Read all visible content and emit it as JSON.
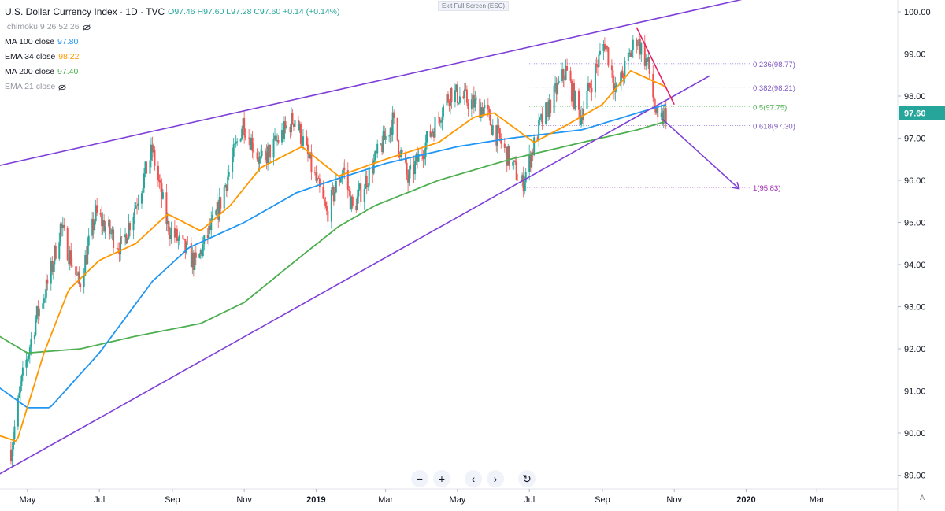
{
  "header": {
    "title": "U.S. Dollar Currency Index · 1D · TVC",
    "ohlc": "O97.46  H97.60  L97.28  C97.60  +0.14 (+0.14%)"
  },
  "legend_rows": [
    {
      "label": "Ichimoku 9 26 52 26",
      "value": "",
      "hidden": true
    },
    {
      "label": "MA  100 close",
      "value": "97.80",
      "color": "#2196f3",
      "hidden": false
    },
    {
      "label": "EMA 34 close",
      "value": "98.22",
      "color": "#ff9800",
      "hidden": false
    },
    {
      "label": "MA  200 close",
      "value": "97.40",
      "color": "#4caf50",
      "hidden": false
    },
    {
      "label": "EMA 21 close",
      "value": "",
      "hidden": true
    }
  ],
  "exit_fullscreen": "Exit Full Screen (ESC)",
  "toolbar": {
    "zoom_out": "−",
    "zoom_in": "+",
    "scroll_left": "‹",
    "scroll_right": "›",
    "reset": "↻"
  },
  "auto_label": "A",
  "chart_data": {
    "type": "candlestick",
    "title": "U.S. Dollar Currency Index",
    "interval": "1D",
    "source": "TVC",
    "colors": {
      "up": "#26a69a",
      "down": "#ef5350",
      "ma100": "#2196f3",
      "ema34": "#ff9800",
      "ma200": "#4caf50",
      "trendline": "#7e3fd8",
      "resistance": "#e91e63",
      "fib": "#9c8ad8"
    },
    "ylim": [
      88.7,
      100.25
    ],
    "y_ticks": [
      "100.00",
      "99.00",
      "98.00",
      "97.00",
      "96.00",
      "95.00",
      "94.00",
      "93.00",
      "92.00",
      "91.00",
      "90.00",
      "89.00"
    ],
    "x_ticks": [
      "May",
      "Jul",
      "Sep",
      "Nov",
      "2019",
      "Mar",
      "May",
      "Jul",
      "Sep",
      "Nov",
      "2020",
      "Mar"
    ],
    "last_price": "97.60",
    "price_path": [
      {
        "date": "2018-04-17",
        "v": 89.6
      },
      {
        "date": "2018-04-26",
        "v": 91.2
      },
      {
        "date": "2018-05-08",
        "v": 92.7
      },
      {
        "date": "2018-05-20",
        "v": 93.7
      },
      {
        "date": "2018-05-29",
        "v": 94.9
      },
      {
        "date": "2018-06-14",
        "v": 93.5
      },
      {
        "date": "2018-06-28",
        "v": 95.2
      },
      {
        "date": "2018-07-20",
        "v": 94.4
      },
      {
        "date": "2018-08-15",
        "v": 96.7
      },
      {
        "date": "2018-08-28",
        "v": 94.9
      },
      {
        "date": "2018-09-21",
        "v": 94.0
      },
      {
        "date": "2018-10-10",
        "v": 95.3
      },
      {
        "date": "2018-10-31",
        "v": 97.4
      },
      {
        "date": "2018-11-15",
        "v": 96.4
      },
      {
        "date": "2018-12-14",
        "v": 97.5
      },
      {
        "date": "2019-01-10",
        "v": 95.2
      },
      {
        "date": "2019-01-24",
        "v": 96.3
      },
      {
        "date": "2019-02-01",
        "v": 95.3
      },
      {
        "date": "2019-03-07",
        "v": 97.4
      },
      {
        "date": "2019-03-20",
        "v": 96.0
      },
      {
        "date": "2019-04-25",
        "v": 98.1
      },
      {
        "date": "2019-05-23",
        "v": 97.7
      },
      {
        "date": "2019-06-25",
        "v": 95.9
      },
      {
        "date": "2019-07-10",
        "v": 97.3
      },
      {
        "date": "2019-08-01",
        "v": 98.6
      },
      {
        "date": "2019-08-13",
        "v": 97.5
      },
      {
        "date": "2019-09-03",
        "v": 99.3
      },
      {
        "date": "2019-09-13",
        "v": 98.1
      },
      {
        "date": "2019-09-30",
        "v": 99.4
      },
      {
        "date": "2019-10-10",
        "v": 98.7
      },
      {
        "date": "2019-10-18",
        "v": 97.3
      },
      {
        "date": "2019-10-25",
        "v": 97.6
      }
    ],
    "ma100_close": [
      {
        "date": "2018-04-01",
        "v": 91.2
      },
      {
        "date": "2018-05-01",
        "v": 90.6
      },
      {
        "date": "2018-05-20",
        "v": 90.6
      },
      {
        "date": "2018-07-01",
        "v": 91.9
      },
      {
        "date": "2018-08-15",
        "v": 93.6
      },
      {
        "date": "2018-09-15",
        "v": 94.4
      },
      {
        "date": "2018-11-01",
        "v": 95.0
      },
      {
        "date": "2018-12-15",
        "v": 95.7
      },
      {
        "date": "2019-01-15",
        "v": 96.0
      },
      {
        "date": "2019-03-01",
        "v": 96.4
      },
      {
        "date": "2019-05-01",
        "v": 96.8
      },
      {
        "date": "2019-06-15",
        "v": 97.0
      },
      {
        "date": "2019-08-15",
        "v": 97.2
      },
      {
        "date": "2019-10-01",
        "v": 97.6
      },
      {
        "date": "2019-10-25",
        "v": 97.8
      }
    ],
    "ema34_close": [
      {
        "date": "2018-04-01",
        "v": 90.0
      },
      {
        "date": "2018-04-22",
        "v": 89.8
      },
      {
        "date": "2018-05-15",
        "v": 91.9
      },
      {
        "date": "2018-06-05",
        "v": 93.4
      },
      {
        "date": "2018-07-01",
        "v": 94.1
      },
      {
        "date": "2018-08-01",
        "v": 94.5
      },
      {
        "date": "2018-08-28",
        "v": 95.2
      },
      {
        "date": "2018-09-25",
        "v": 94.8
      },
      {
        "date": "2018-10-20",
        "v": 95.4
      },
      {
        "date": "2018-11-15",
        "v": 96.3
      },
      {
        "date": "2018-12-20",
        "v": 96.8
      },
      {
        "date": "2019-01-20",
        "v": 96.1
      },
      {
        "date": "2019-03-01",
        "v": 96.5
      },
      {
        "date": "2019-04-15",
        "v": 96.9
      },
      {
        "date": "2019-05-15",
        "v": 97.5
      },
      {
        "date": "2019-06-01",
        "v": 97.6
      },
      {
        "date": "2019-07-05",
        "v": 96.9
      },
      {
        "date": "2019-08-01",
        "v": 97.3
      },
      {
        "date": "2019-09-01",
        "v": 97.8
      },
      {
        "date": "2019-09-25",
        "v": 98.6
      },
      {
        "date": "2019-10-25",
        "v": 98.22
      }
    ],
    "ma200_close": [
      {
        "date": "2018-04-01",
        "v": 92.4
      },
      {
        "date": "2018-05-01",
        "v": 91.9
      },
      {
        "date": "2018-06-15",
        "v": 92.0
      },
      {
        "date": "2018-08-01",
        "v": 92.3
      },
      {
        "date": "2018-09-25",
        "v": 92.6
      },
      {
        "date": "2018-11-01",
        "v": 93.1
      },
      {
        "date": "2018-12-15",
        "v": 94.1
      },
      {
        "date": "2019-01-20",
        "v": 94.9
      },
      {
        "date": "2019-02-20",
        "v": 95.4
      },
      {
        "date": "2019-04-15",
        "v": 96.0
      },
      {
        "date": "2019-06-15",
        "v": 96.5
      },
      {
        "date": "2019-08-15",
        "v": 96.9
      },
      {
        "date": "2019-10-01",
        "v": 97.2
      },
      {
        "date": "2019-10-25",
        "v": 97.4
      }
    ],
    "trendlines": [
      {
        "name": "upper-channel",
        "color": "#7e3fd8",
        "from": {
          "date": "2018-03-27",
          "v": 96.28
        },
        "to": {
          "date": "2019-12-28",
          "v": 100.29
        }
      },
      {
        "name": "lower-channel",
        "color": "#7e3fd8",
        "from": {
          "date": "2018-03-27",
          "v": 88.85
        },
        "to": {
          "date": "2019-12-01",
          "v": 98.48
        }
      },
      {
        "name": "resistance",
        "color": "#e91e63",
        "from": {
          "date": "2019-09-30",
          "v": 99.63
        },
        "to": {
          "date": "2019-11-01",
          "v": 97.8
        }
      },
      {
        "name": "target-arrow",
        "color": "#7e3fd8",
        "from": {
          "date": "2019-10-22",
          "v": 97.45
        },
        "to": {
          "date": "2019-12-26",
          "v": 95.8
        }
      }
    ],
    "fib_levels": [
      {
        "label": "0.236(98.77)",
        "value": 98.77,
        "color": "#7e57c2"
      },
      {
        "label": "0.382(98.21)",
        "value": 98.21,
        "color": "#7e57c2"
      },
      {
        "label": "0.5(97.75)",
        "value": 97.75,
        "color": "#4caf50"
      },
      {
        "label": "0.618(97.30)",
        "value": 97.3,
        "color": "#7e57c2"
      },
      {
        "label": "1(95.83)",
        "value": 95.83,
        "color": "#9c27b0"
      }
    ]
  }
}
